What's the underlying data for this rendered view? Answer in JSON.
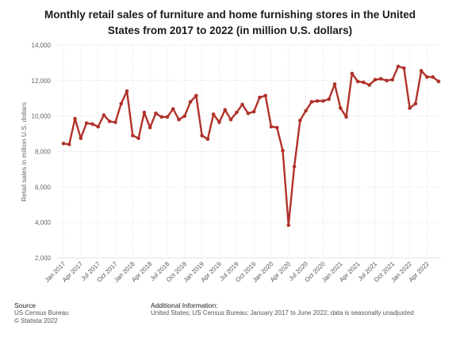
{
  "chart_data": {
    "type": "line",
    "title": "Monthly retail sales of furniture and home furnishing stores in the United States from 2017 to 2022 (in million U.S. dollars)",
    "ylabel": "Retail sales in million U.S. dollars",
    "xlabel": "",
    "ylim": [
      2000,
      14000
    ],
    "yticks": [
      2000,
      4000,
      6000,
      8000,
      10000,
      12000,
      14000
    ],
    "ytick_labels": [
      "2,000",
      "4,000",
      "6,000",
      "8,000",
      "10,000",
      "12,000",
      "14,000"
    ],
    "xtick_labels": [
      "Jan 2017",
      "Apr 2017",
      "Jul 2017",
      "Oct 2017",
      "Jan 2018",
      "Apr 2018",
      "Jul 2018",
      "Oct 2018",
      "Jan 2019",
      "Apr 2019",
      "Jul 2019",
      "Oct 2019",
      "Jan 2020",
      "Apr 2020",
      "Jul 2020",
      "Oct 2020",
      "Jan 2021",
      "Apr 2021",
      "Jul 2021",
      "Oct 2021",
      "Jan 2022",
      "Apr 2022"
    ],
    "grid": true,
    "legend": "none",
    "line_color": "#b0322a",
    "series": [
      {
        "values": [
          8450,
          8400,
          9850,
          8750,
          9600,
          9550,
          9400,
          10050,
          9700,
          9650,
          10700,
          11400,
          8900,
          8750,
          10200,
          9350,
          10150,
          9950,
          9950,
          10400,
          9800,
          10000,
          10800,
          11150,
          8900,
          8700,
          10100,
          9650,
          10350,
          9800,
          10200,
          10650,
          10150,
          10250,
          11050,
          11150,
          9400,
          9350,
          8050,
          3850,
          7150,
          9750,
          10300,
          10800,
          10850,
          10850,
          10950,
          11800,
          10450,
          9950,
          12400,
          11950,
          11900,
          11750,
          12050,
          12100,
          12000,
          12050,
          12800,
          12700,
          10450,
          10700,
          12550,
          12200,
          12200,
          11950
        ]
      }
    ]
  },
  "footer": {
    "source_title": "Source",
    "source_line1": "US Census Bureau",
    "source_line2": "© Statista 2022",
    "info_title": "Additional Information:",
    "info_text": "United States; US Census Bureau; January 2017 to June 2022; data is seasonally unadjusted"
  }
}
